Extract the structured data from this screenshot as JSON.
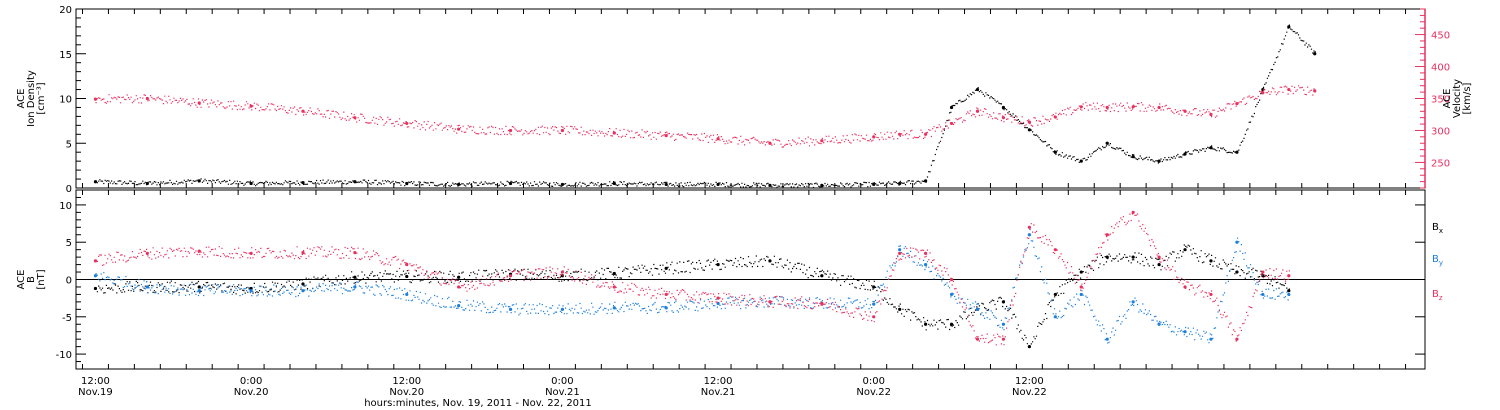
{
  "chart_data": [
    {
      "type": "scatter",
      "panel": "top",
      "left_axis": {
        "lines": [
          "ACE",
          "Ion Density",
          "[cm⁻³]"
        ],
        "ylim": [
          0,
          20
        ],
        "ticks": [
          0,
          5,
          10,
          15,
          20
        ]
      },
      "right_axis": {
        "lines": [
          "ACE",
          "Velocity",
          "[km/s]"
        ],
        "ylim": [
          210,
          490
        ],
        "ticks": [
          250,
          300,
          350,
          400,
          450
        ],
        "color": "#e8305e"
      },
      "series": [
        {
          "axis": "left",
          "color": "#000000",
          "x": [
            0,
            4,
            8,
            12,
            16,
            20,
            24,
            28,
            32,
            36,
            40,
            44,
            48,
            52,
            56,
            60,
            62,
            64,
            66,
            68,
            70,
            72,
            74,
            76,
            78,
            80,
            82,
            84,
            86,
            88,
            90,
            92,
            94
          ],
          "values": [
            0.7,
            0.5,
            0.8,
            0.5,
            0.6,
            0.7,
            0.5,
            0.4,
            0.5,
            0.4,
            0.5,
            0.4,
            0.4,
            0.3,
            0.3,
            0.4,
            0.5,
            0.8,
            9.0,
            11.0,
            9.0,
            6.5,
            4.0,
            3.0,
            5.0,
            3.5,
            3.0,
            3.8,
            4.5,
            4.0,
            11.0,
            18.0,
            15.0
          ]
        },
        {
          "axis": "right",
          "color": "#e8305e",
          "x": [
            0,
            4,
            8,
            12,
            16,
            20,
            24,
            28,
            32,
            36,
            40,
            44,
            48,
            52,
            56,
            60,
            62,
            64,
            66,
            68,
            70,
            72,
            74,
            76,
            78,
            80,
            82,
            84,
            86,
            88,
            90,
            92,
            94
          ],
          "values": [
            349,
            350,
            343,
            338,
            330,
            320,
            311,
            302,
            300,
            300,
            296,
            292,
            287,
            280,
            284,
            290,
            294,
            294,
            311,
            330,
            320,
            313,
            321,
            337,
            336,
            337,
            336,
            330,
            325,
            342,
            359,
            364,
            362
          ]
        }
      ]
    },
    {
      "type": "scatter",
      "panel": "bottom",
      "left_axis": {
        "lines": [
          "ACE",
          "B",
          "[nT]"
        ],
        "ylim": [
          -12,
          12
        ],
        "ticks": [
          -10,
          -5,
          0,
          5,
          10
        ]
      },
      "legend": [
        {
          "label": "B",
          "sub": "x",
          "color": "#000000"
        },
        {
          "label": "B",
          "sub": "y",
          "color": "#1b7fdb"
        },
        {
          "label": "B",
          "sub": "z",
          "color": "#e8305e"
        }
      ],
      "series": [
        {
          "color": "#000000",
          "x": [
            0,
            4,
            8,
            12,
            16,
            20,
            24,
            28,
            32,
            36,
            40,
            44,
            48,
            52,
            56,
            60,
            62,
            64,
            66,
            68,
            70,
            72,
            74,
            76,
            78,
            80,
            82,
            84,
            86,
            88,
            90,
            92
          ],
          "values": [
            -1.2,
            -1.0,
            -1.0,
            -1.2,
            -0.6,
            0.3,
            0.4,
            0.3,
            0.7,
            0.5,
            0.8,
            1.5,
            2.0,
            2.5,
            0.5,
            -1.0,
            -4.0,
            -6.0,
            -6.0,
            -4.0,
            -3.0,
            -9.0,
            -2.0,
            1.0,
            3.0,
            3.0,
            2.0,
            4.0,
            2.5,
            1.0,
            0.5,
            -1.5
          ]
        },
        {
          "color": "#1b7fdb",
          "x": [
            0,
            4,
            8,
            12,
            16,
            20,
            24,
            28,
            32,
            36,
            40,
            44,
            48,
            52,
            56,
            60,
            62,
            64,
            66,
            68,
            70,
            72,
            74,
            76,
            78,
            80,
            82,
            84,
            86,
            88,
            90,
            92
          ],
          "values": [
            0.5,
            -1.0,
            -1.5,
            -1.5,
            -1.5,
            -1.0,
            -2.0,
            -3.5,
            -4.0,
            -4.0,
            -3.8,
            -3.8,
            -3.2,
            -3.0,
            -3.2,
            -3.3,
            4.0,
            2.0,
            -2.0,
            -4.0,
            -6.0,
            6.0,
            -5.0,
            -2.0,
            -8.0,
            -3.0,
            -6.0,
            -7.0,
            -8.0,
            5.0,
            -2.0,
            -2.0
          ]
        },
        {
          "color": "#e8305e",
          "x": [
            0,
            4,
            8,
            12,
            16,
            20,
            24,
            28,
            32,
            36,
            40,
            44,
            48,
            52,
            56,
            60,
            62,
            64,
            66,
            68,
            70,
            72,
            74,
            76,
            78,
            80,
            82,
            84,
            86,
            88,
            90,
            92
          ],
          "values": [
            2.5,
            3.5,
            3.8,
            3.5,
            3.6,
            3.6,
            2.0,
            -1.0,
            0.5,
            1.0,
            -1.0,
            -2.0,
            -2.5,
            -3.0,
            -3.2,
            -5.0,
            3.5,
            3.5,
            0.0,
            -8.0,
            -8.0,
            7.0,
            4.0,
            -1.0,
            6.0,
            9.0,
            3.0,
            -1.0,
            -2.0,
            -8.0,
            1.0,
            0.5
          ]
        }
      ]
    }
  ],
  "time_axis": {
    "xlim": [
      -1.5,
      102.5
    ],
    "ticks": [
      {
        "x": 0,
        "time": "12:00",
        "date": "Nov.19"
      },
      {
        "x": 12,
        "time": "0:00",
        "date": "Nov.20"
      },
      {
        "x": 24,
        "time": "12:00",
        "date": "Nov.20"
      },
      {
        "x": 36,
        "time": "0:00",
        "date": "Nov.21"
      },
      {
        "x": 48,
        "time": "12:00",
        "date": "Nov.21"
      },
      {
        "x": 60,
        "time": "0:00",
        "date": "Nov.22"
      },
      {
        "x": 72,
        "time": "12:00",
        "date": "Nov.22"
      }
    ],
    "xlabel": "hours:minutes, Nov. 19, 2011 - Nov. 22, 2011"
  }
}
